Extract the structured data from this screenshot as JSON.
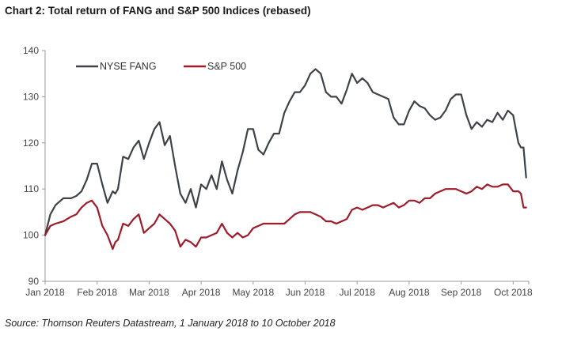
{
  "chart_data": {
    "type": "line",
    "title": "Chart 2: Total return of FANG and S&P 500 Indices (rebased)",
    "source": "Source: Thomson Reuters Datastream, 1 January 2018 to 10 October 2018",
    "xlabel": "",
    "ylabel": "",
    "ylim": [
      90,
      140
    ],
    "yticks": [
      "90",
      "100",
      "110",
      "120",
      "130",
      "140"
    ],
    "xlim": [
      0,
      9.3
    ],
    "xticks": [
      "Jan 2018",
      "Feb 2018",
      "Mar 2018",
      "Apr 2018",
      "May 2018",
      "Jun 2018",
      "Jul 2018",
      "Aug 2018",
      "Sep 2018",
      "Oct 2018"
    ],
    "grid": false,
    "legend": "top-left",
    "series": [
      {
        "name": "NYSE FANG",
        "color": "#3d4249",
        "x": [
          0,
          0.1,
          0.2,
          0.35,
          0.5,
          0.6,
          0.7,
          0.8,
          0.9,
          1.0,
          1.1,
          1.2,
          1.3,
          1.35,
          1.4,
          1.5,
          1.6,
          1.7,
          1.8,
          1.9,
          2.0,
          2.1,
          2.2,
          2.3,
          2.4,
          2.5,
          2.6,
          2.7,
          2.8,
          2.9,
          3.0,
          3.1,
          3.2,
          3.3,
          3.4,
          3.5,
          3.6,
          3.7,
          3.8,
          3.9,
          4.0,
          4.1,
          4.2,
          4.3,
          4.4,
          4.5,
          4.6,
          4.7,
          4.8,
          4.9,
          5.0,
          5.1,
          5.2,
          5.3,
          5.4,
          5.5,
          5.6,
          5.7,
          5.8,
          5.9,
          6.0,
          6.1,
          6.2,
          6.3,
          6.4,
          6.5,
          6.6,
          6.7,
          6.8,
          6.9,
          7.0,
          7.1,
          7.2,
          7.3,
          7.4,
          7.5,
          7.6,
          7.7,
          7.8,
          7.9,
          8.0,
          8.1,
          8.2,
          8.3,
          8.4,
          8.5,
          8.6,
          8.7,
          8.8,
          8.9,
          9.0,
          9.1,
          9.15,
          9.2,
          9.25
        ],
        "values": [
          100,
          104.5,
          106.5,
          108,
          108,
          108.5,
          109.5,
          112,
          115.5,
          115.5,
          111,
          107,
          109.5,
          109,
          110,
          117,
          116.5,
          119,
          120.5,
          116.5,
          120,
          123,
          124.5,
          119.5,
          121.5,
          115,
          109,
          107,
          110,
          106,
          111,
          110,
          113,
          110,
          116,
          112,
          109,
          114,
          118,
          123,
          123,
          118.5,
          117.5,
          120,
          122,
          122,
          126.5,
          129,
          131,
          131,
          132.5,
          135,
          136,
          135,
          131,
          130,
          130,
          128.5,
          131.5,
          135,
          133,
          134,
          133,
          131,
          130.5,
          130,
          129.5,
          125.5,
          124,
          124,
          127,
          129,
          128,
          127.5,
          126,
          125,
          125.5,
          127,
          129.5,
          130.5,
          130.5,
          126,
          123,
          124.5,
          123.5,
          125,
          124.5,
          126.5,
          125,
          127,
          126,
          120,
          119,
          119,
          112.5
        ]
      },
      {
        "name": "S&P 500",
        "color": "#9e1b29",
        "x": [
          0,
          0.1,
          0.2,
          0.35,
          0.5,
          0.6,
          0.7,
          0.8,
          0.9,
          1.0,
          1.1,
          1.2,
          1.3,
          1.35,
          1.4,
          1.5,
          1.6,
          1.7,
          1.8,
          1.9,
          2.0,
          2.1,
          2.2,
          2.3,
          2.4,
          2.5,
          2.6,
          2.7,
          2.8,
          2.9,
          3.0,
          3.1,
          3.2,
          3.3,
          3.4,
          3.5,
          3.6,
          3.7,
          3.8,
          3.9,
          4.0,
          4.1,
          4.2,
          4.3,
          4.4,
          4.5,
          4.6,
          4.7,
          4.8,
          4.9,
          5.0,
          5.1,
          5.2,
          5.3,
          5.4,
          5.5,
          5.6,
          5.7,
          5.8,
          5.9,
          6.0,
          6.1,
          6.2,
          6.3,
          6.4,
          6.5,
          6.6,
          6.7,
          6.8,
          6.9,
          7.0,
          7.1,
          7.2,
          7.3,
          7.4,
          7.5,
          7.6,
          7.7,
          7.8,
          7.9,
          8.0,
          8.1,
          8.2,
          8.3,
          8.4,
          8.5,
          8.6,
          8.7,
          8.8,
          8.9,
          9.0,
          9.1,
          9.15,
          9.2,
          9.25
        ],
        "values": [
          100,
          102,
          102.5,
          103,
          104,
          104.5,
          106,
          107,
          107.5,
          106,
          102,
          100,
          97,
          98.5,
          99,
          102.5,
          102,
          103.5,
          104.5,
          100.5,
          101.5,
          102.5,
          104.5,
          103.5,
          102.5,
          101,
          97.5,
          99,
          98.5,
          97.5,
          99.5,
          99.5,
          100,
          100.5,
          102.5,
          100.5,
          99.5,
          100.5,
          99.5,
          100,
          101.5,
          102,
          102.5,
          102.5,
          102.5,
          102.5,
          102.5,
          103.5,
          104.5,
          105,
          105,
          105,
          104.5,
          104,
          103,
          103,
          102.5,
          103,
          103.5,
          105.5,
          106,
          105.5,
          106,
          106.5,
          106.5,
          106,
          106.5,
          107,
          106,
          106.5,
          107.5,
          107.5,
          107,
          108,
          108,
          109,
          109.5,
          110,
          110,
          110,
          109.5,
          109,
          109.5,
          110.5,
          110,
          111,
          110.5,
          110.5,
          111,
          111,
          109.5,
          109.5,
          109,
          106,
          106
        ]
      }
    ]
  }
}
